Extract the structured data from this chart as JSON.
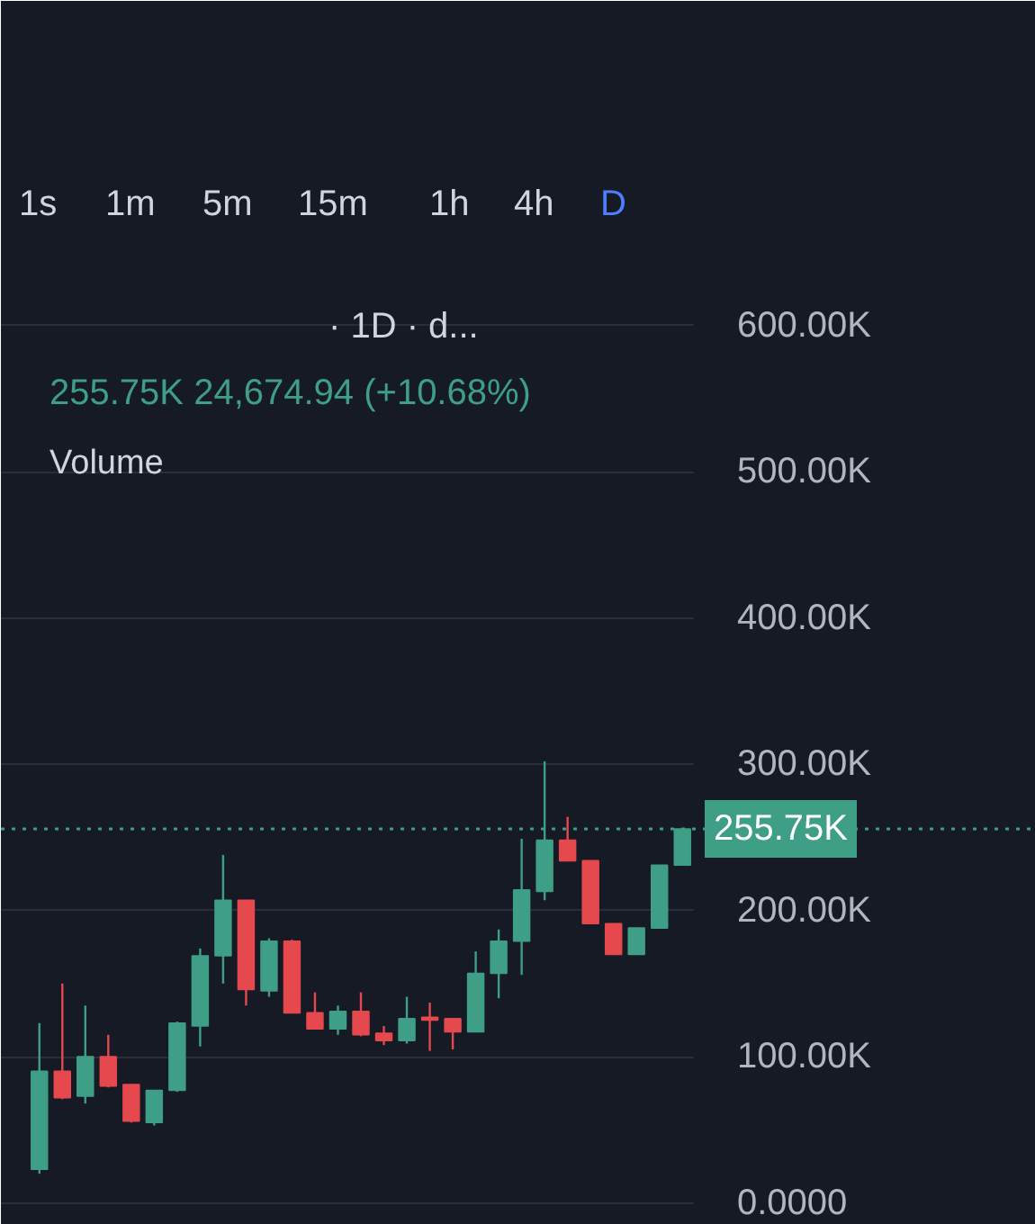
{
  "chart_data": {
    "type": "candlestick",
    "categories": [
      null,
      null,
      null,
      null,
      null,
      null,
      null,
      null,
      null,
      null,
      null,
      null,
      null,
      null,
      null,
      null,
      null,
      null,
      null,
      null,
      null,
      null,
      null,
      null,
      null,
      null,
      null,
      null,
      null
    ],
    "ohlc": [
      [
        23000,
        123000,
        20000,
        90000
      ],
      [
        90000,
        150000,
        71000,
        72000
      ],
      [
        73000,
        135000,
        68000,
        100000
      ],
      [
        100000,
        115000,
        79000,
        80000
      ],
      [
        81000,
        81000,
        55000,
        56000
      ],
      [
        55000,
        77000,
        53000,
        77000
      ],
      [
        77000,
        124000,
        76000,
        123000
      ],
      [
        121000,
        174000,
        107000,
        169000
      ],
      [
        169000,
        238000,
        150000,
        207000
      ],
      [
        207000,
        207000,
        135000,
        146000
      ],
      [
        145000,
        181000,
        141000,
        179000
      ],
      [
        179000,
        180000,
        130000,
        130000
      ],
      [
        130000,
        144000,
        119000,
        119000
      ],
      [
        119000,
        135000,
        115000,
        131000
      ],
      [
        131000,
        144000,
        114000,
        115000
      ],
      [
        116000,
        121000,
        108000,
        111000
      ],
      [
        111000,
        141000,
        109000,
        126000
      ],
      [
        127000,
        137000,
        104000,
        125000
      ],
      [
        126000,
        126000,
        105000,
        117000
      ],
      [
        117000,
        172000,
        117000,
        157000
      ],
      [
        157000,
        187000,
        140000,
        179000
      ],
      [
        179000,
        249000,
        156000,
        214000
      ],
      [
        213000,
        302000,
        207000,
        248000
      ],
      [
        248000,
        264000,
        234000,
        234000
      ],
      [
        234000,
        234000,
        191000,
        191000
      ],
      [
        191000,
        191000,
        170000,
        170000
      ],
      [
        170000,
        188000,
        170000,
        188000
      ],
      [
        188000,
        231000,
        188000,
        231000
      ],
      [
        231000,
        255750,
        231000,
        255750
      ]
    ],
    "colors": [
      "#3e9e86",
      "#e5484d",
      "#3e9e86",
      "#e5484d",
      "#e5484d",
      "#3e9e86",
      "#3e9e86",
      "#3e9e86",
      "#3e9e86",
      "#e5484d",
      "#3e9e86",
      "#e5484d",
      "#e5484d",
      "#3e9e86",
      "#e5484d",
      "#e5484d",
      "#3e9e86",
      "#e5484d",
      "#e5484d",
      "#3e9e86",
      "#3e9e86",
      "#3e9e86",
      "#3e9e86",
      "#e5484d",
      "#e5484d",
      "#e5484d",
      "#3e9e86",
      "#3e9e86",
      "#3e9e86"
    ],
    "ylim": [
      -15000,
      822000
    ],
    "yticks": [
      {
        "value": 0,
        "label": "0.0000"
      },
      {
        "value": 100000,
        "label": "100.00K"
      },
      {
        "value": 200000,
        "label": "200.00K"
      },
      {
        "value": 300000,
        "label": "300.00K"
      },
      {
        "value": 400000,
        "label": "400.00K"
      },
      {
        "value": 500000,
        "label": "500.00K"
      },
      {
        "value": 600000,
        "label": "600.00K"
      }
    ],
    "grid": "y",
    "tick_labels": "y",
    "ref_lines": [
      {
        "axis": "y",
        "value": 255750,
        "label": "255.75K",
        "color": "#3e9e86",
        "line_style": "dotted"
      }
    ],
    "annotations": [
      "1s",
      "1m",
      "5m",
      "15m",
      "1h",
      "4h",
      "D",
      "· 1D · d...",
      "255.75K  24,674.94 (+10.68%)",
      "Volume"
    ]
  }
}
